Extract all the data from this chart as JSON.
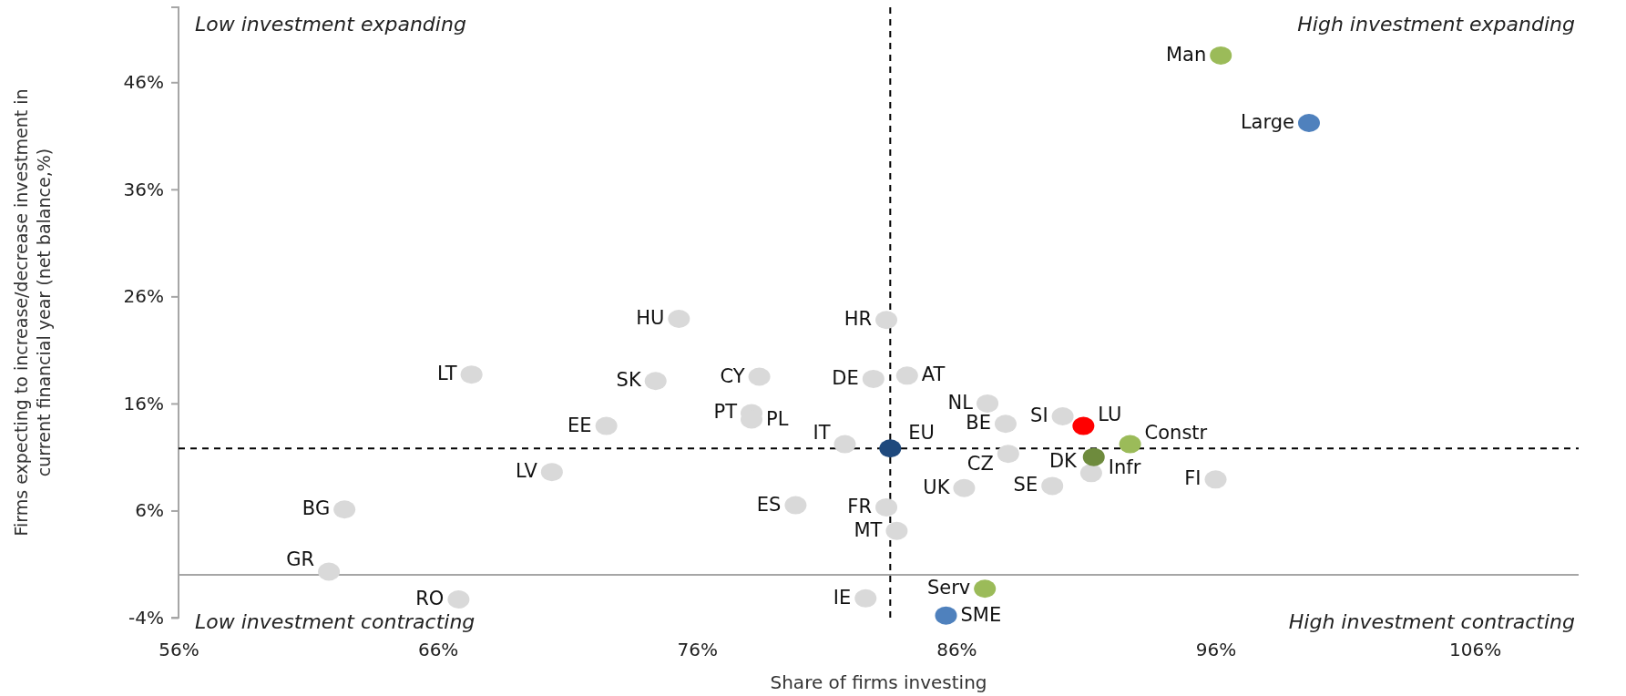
{
  "chart_data": {
    "type": "scatter",
    "xlabel": "Share of firms investing",
    "ylabel": "Firms expecting to increase/decrease investment in current financial year (net balance,%)",
    "xlim": [
      56,
      110
    ],
    "ylim": [
      -4,
      53
    ],
    "xticks": [
      {
        "value": 56,
        "label": "56%"
      },
      {
        "value": 66,
        "label": "66%"
      },
      {
        "value": 76,
        "label": "76%"
      },
      {
        "value": 86,
        "label": "86%"
      },
      {
        "value": 96,
        "label": "96%"
      },
      {
        "value": 106,
        "label": "106%"
      }
    ],
    "yticks": [
      {
        "value": -4,
        "label": "-4%"
      },
      {
        "value": 6,
        "label": "6%"
      },
      {
        "value": 16,
        "label": "16%"
      },
      {
        "value": 26,
        "label": "26%"
      },
      {
        "value": 36,
        "label": "36%"
      },
      {
        "value": 46,
        "label": "46%"
      }
    ],
    "grid": false,
    "legend": false,
    "marker": "circle",
    "annotations": [
      "Low investment expanding",
      "High investment expanding",
      "Low investment contracting",
      "High investment contracting"
    ],
    "ref_lines": [
      {
        "axis": "y",
        "value": 0,
        "color": "#a6a6a6",
        "line_style": "solid"
      },
      {
        "axis": "x",
        "value": 83.45,
        "color": "#000000",
        "line_style": "dashed"
      },
      {
        "axis": "y",
        "value": 11.8,
        "color": "#000000",
        "line_style": "dashed"
      }
    ],
    "series": [
      {
        "name": "HU",
        "color": "#d9d9d9",
        "x": [
          75.3
        ],
        "values": [
          23.9
        ]
      },
      {
        "name": "LT",
        "color": "#d9d9d9",
        "x": [
          67.3
        ],
        "values": [
          18.7
        ]
      },
      {
        "name": "SK",
        "color": "#d9d9d9",
        "x": [
          74.4
        ],
        "values": [
          18.1
        ]
      },
      {
        "name": "CY",
        "color": "#d9d9d9",
        "x": [
          78.4
        ],
        "values": [
          18.5
        ]
      },
      {
        "name": "PT",
        "color": "#d9d9d9",
        "x": [
          78.1
        ],
        "values": [
          15.1
        ]
      },
      {
        "name": "PL",
        "color": "#d9d9d9",
        "x": [
          78.1
        ],
        "values": [
          14.5
        ]
      },
      {
        "name": "EE",
        "color": "#d9d9d9",
        "x": [
          72.5
        ],
        "values": [
          13.9
        ]
      },
      {
        "name": "LV",
        "color": "#d9d9d9",
        "x": [
          70.4
        ],
        "values": [
          9.6
        ]
      },
      {
        "name": "BG",
        "color": "#d9d9d9",
        "x": [
          62.4
        ],
        "values": [
          6.1
        ]
      },
      {
        "name": "GR",
        "color": "#d9d9d9",
        "x": [
          61.8
        ],
        "values": [
          0.3
        ]
      },
      {
        "name": "RO",
        "color": "#d9d9d9",
        "x": [
          66.8
        ],
        "values": [
          -2.3
        ]
      },
      {
        "name": "ES",
        "color": "#d9d9d9",
        "x": [
          79.8
        ],
        "values": [
          6.5
        ]
      },
      {
        "name": "HR",
        "color": "#d9d9d9",
        "x": [
          83.3
        ],
        "values": [
          23.8
        ]
      },
      {
        "name": "DE",
        "color": "#d9d9d9",
        "x": [
          82.8
        ],
        "values": [
          18.3
        ]
      },
      {
        "name": "AT",
        "color": "#d9d9d9",
        "x": [
          84.1
        ],
        "values": [
          18.6
        ]
      },
      {
        "name": "NL",
        "color": "#d9d9d9",
        "x": [
          87.2
        ],
        "values": [
          16.0
        ]
      },
      {
        "name": "BE",
        "color": "#d9d9d9",
        "x": [
          87.9
        ],
        "values": [
          14.1
        ]
      },
      {
        "name": "SI",
        "color": "#d9d9d9",
        "x": [
          90.1
        ],
        "values": [
          14.8
        ]
      },
      {
        "name": "CZ",
        "color": "#d9d9d9",
        "x": [
          88.0
        ],
        "values": [
          11.3
        ]
      },
      {
        "name": "IT",
        "color": "#d9d9d9",
        "x": [
          81.7
        ],
        "values": [
          12.2
        ]
      },
      {
        "name": "UK",
        "color": "#d9d9d9",
        "x": [
          86.3
        ],
        "values": [
          8.1
        ]
      },
      {
        "name": "SE",
        "color": "#d9d9d9",
        "x": [
          89.7
        ],
        "values": [
          8.3
        ]
      },
      {
        "name": "DK",
        "color": "#d9d9d9",
        "x": [
          91.2
        ],
        "values": [
          9.5
        ]
      },
      {
        "name": "FI",
        "color": "#d9d9d9",
        "x": [
          96.0
        ],
        "values": [
          8.9
        ]
      },
      {
        "name": "FR",
        "color": "#d9d9d9",
        "x": [
          83.3
        ],
        "values": [
          6.3
        ]
      },
      {
        "name": "MT",
        "color": "#d9d9d9",
        "x": [
          83.7
        ],
        "values": [
          4.1
        ]
      },
      {
        "name": "IE",
        "color": "#d9d9d9",
        "x": [
          82.5
        ],
        "values": [
          -2.2
        ]
      },
      {
        "name": "EU",
        "color": "#1f497d",
        "x": [
          83.45
        ],
        "values": [
          11.8
        ]
      },
      {
        "name": "LU",
        "color": "#ff0000",
        "x": [
          90.9
        ],
        "values": [
          13.9
        ]
      },
      {
        "name": "Constr",
        "color": "#9bbb59",
        "x": [
          92.7
        ],
        "values": [
          12.2
        ]
      },
      {
        "name": "Infr",
        "color": "#6e8b3d",
        "x": [
          91.3
        ],
        "values": [
          11.0
        ]
      },
      {
        "name": "Serv",
        "color": "#9bbb59",
        "x": [
          87.1
        ],
        "values": [
          -1.3
        ]
      },
      {
        "name": "SME",
        "color": "#4f81bd",
        "x": [
          85.6
        ],
        "values": [
          -3.8
        ]
      },
      {
        "name": "Man",
        "color": "#9bbb59",
        "x": [
          96.2
        ],
        "values": [
          48.5
        ]
      },
      {
        "name": "Large",
        "color": "#4f81bd",
        "x": [
          99.6
        ],
        "values": [
          42.2
        ]
      }
    ]
  }
}
